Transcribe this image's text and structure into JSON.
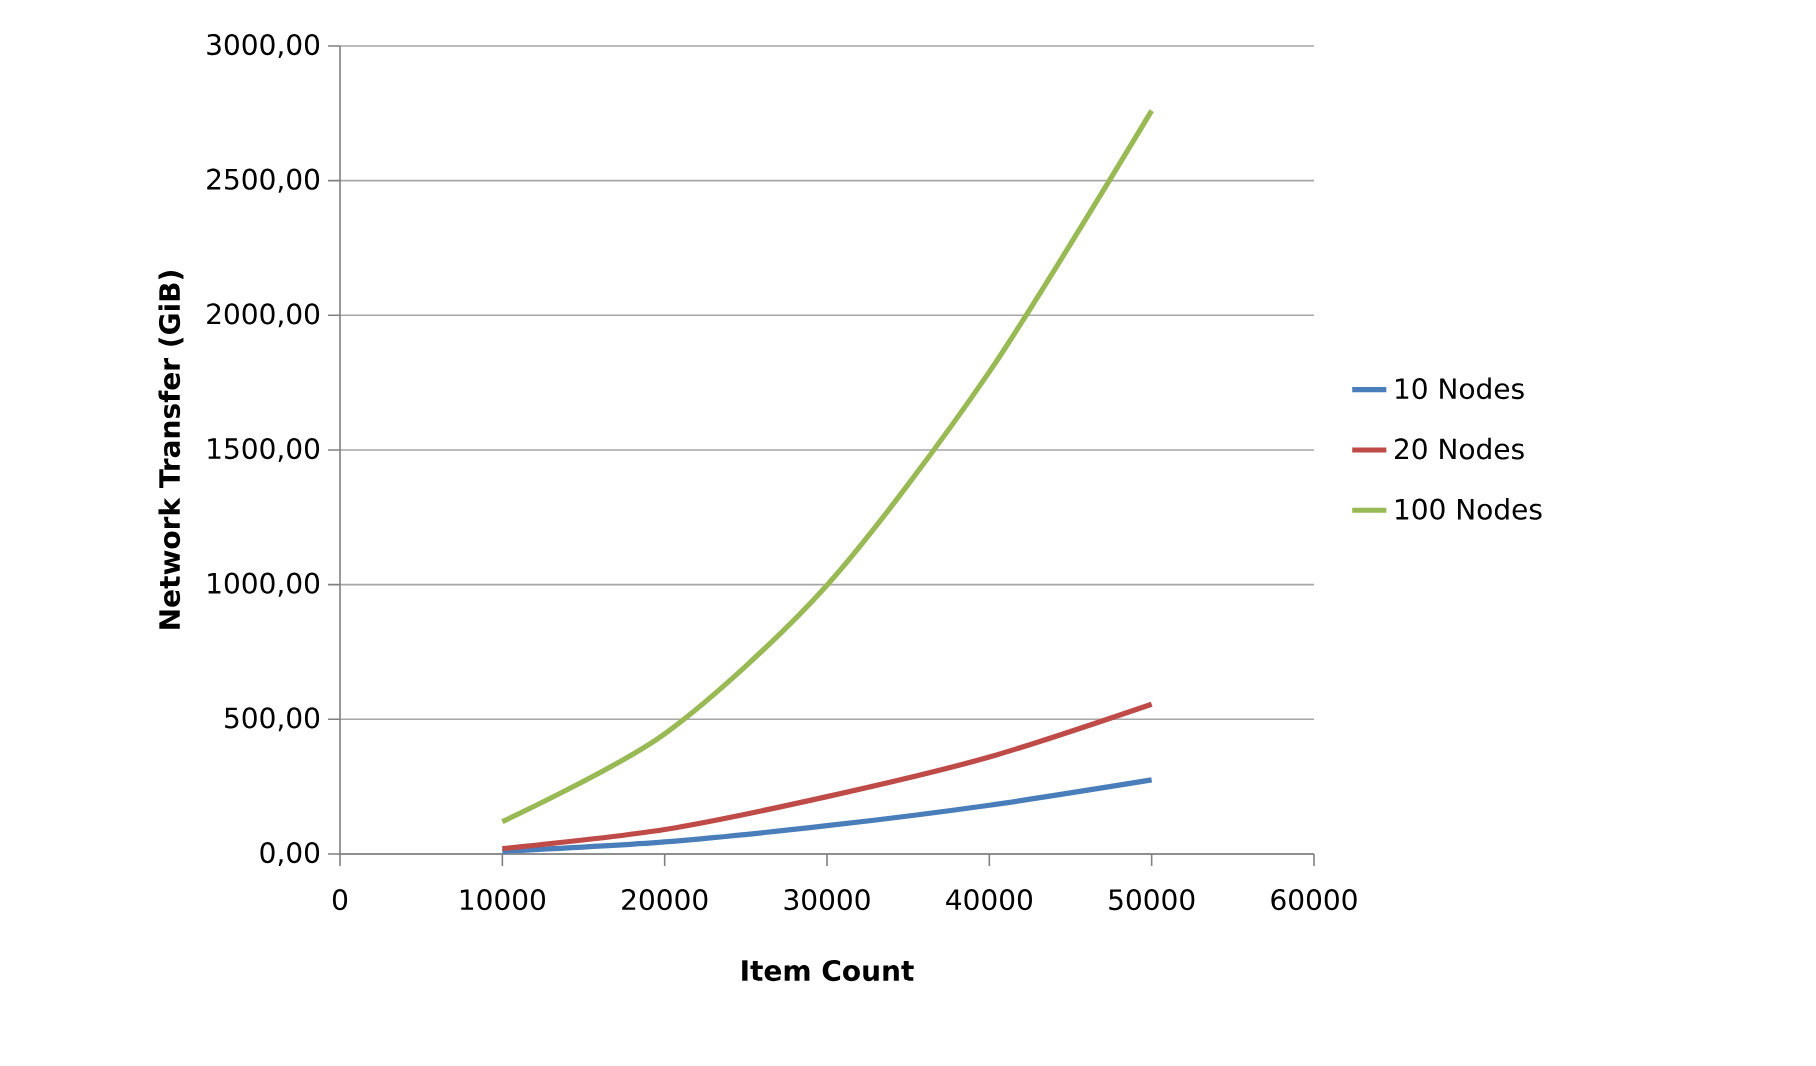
{
  "chart_data": {
    "type": "line",
    "xlabel": "Item Count",
    "ylabel": "Network Transfer (GiB)",
    "x": [
      10000,
      20000,
      30000,
      40000,
      50000
    ],
    "series": [
      {
        "name": "10 Nodes",
        "color": "#4a7ebb",
        "values": [
          10,
          45,
          105,
          181,
          275
        ]
      },
      {
        "name": "20 Nodes",
        "color": "#be4b48",
        "values": [
          20,
          91,
          213,
          360,
          556
        ]
      },
      {
        "name": "100 Nodes",
        "color": "#98b954",
        "values": [
          120,
          446,
          998,
          1790,
          2760
        ]
      }
    ],
    "xlim": [
      0,
      60000
    ],
    "xticks": [
      0,
      10000,
      20000,
      30000,
      40000,
      50000,
      60000
    ],
    "ylim": [
      0,
      3000
    ],
    "yticks": [
      {
        "value": 0,
        "label": "0,00"
      },
      {
        "value": 500,
        "label": "500,00"
      },
      {
        "value": 1000,
        "label": "1000,00"
      },
      {
        "value": 1500,
        "label": "1500,00"
      },
      {
        "value": 2000,
        "label": "2000,00"
      },
      {
        "value": 2500,
        "label": "2500,00"
      },
      {
        "value": 3000,
        "label": "3000,00"
      }
    ],
    "grid": "y",
    "legend": "right",
    "marker": "none",
    "line_style": "solid"
  }
}
